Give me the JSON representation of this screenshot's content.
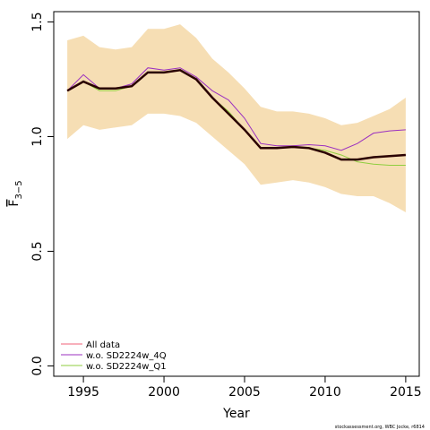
{
  "chart_data": {
    "type": "line",
    "xlabel": "Year",
    "ylabel": {
      "text": "F",
      "subscript": "3−5"
    },
    "caption": "stockassessment.org, WBC Jocke, r6814",
    "x": [
      1994,
      1995,
      1996,
      1997,
      1998,
      1999,
      2000,
      2001,
      2002,
      2003,
      2004,
      2005,
      2006,
      2007,
      2008,
      2009,
      2010,
      2011,
      2012,
      2013,
      2014,
      2015
    ],
    "xlim": [
      1993.16,
      2015.84
    ],
    "xticks": [
      1995,
      2000,
      2005,
      2010,
      2015
    ],
    "ylim": [
      -0.045,
      1.545
    ],
    "yticks": [
      {
        "value": 0,
        "label": "0.0"
      },
      {
        "value": 0.5,
        "label": "0.5"
      },
      {
        "value": 1,
        "label": "1.0"
      },
      {
        "value": 1.5,
        "label": "1.5"
      }
    ],
    "band": {
      "color": "#f6deb4",
      "upper": [
        1.42,
        1.44,
        1.39,
        1.38,
        1.39,
        1.47,
        1.47,
        1.49,
        1.43,
        1.34,
        1.28,
        1.21,
        1.13,
        1.11,
        1.11,
        1.1,
        1.08,
        1.05,
        1.06,
        1.09,
        1.12,
        1.17
      ],
      "lower": [
        0.99,
        1.05,
        1.03,
        1.04,
        1.05,
        1.1,
        1.1,
        1.09,
        1.06,
        1.0,
        0.94,
        0.88,
        0.79,
        0.8,
        0.81,
        0.8,
        0.78,
        0.75,
        0.74,
        0.74,
        0.71,
        0.67
      ]
    },
    "main_line": {
      "color": "#2a0000",
      "values": [
        1.2,
        1.24,
        1.21,
        1.21,
        1.22,
        1.28,
        1.28,
        1.29,
        1.25,
        1.17,
        1.1,
        1.03,
        0.95,
        0.95,
        0.955,
        0.95,
        0.93,
        0.9,
        0.9,
        0.91,
        0.915,
        0.92
      ]
    },
    "legend_position": "bottom-left",
    "series": [
      {
        "name": "All data",
        "color": "#f0607a",
        "values": [
          1.2,
          1.24,
          1.21,
          1.21,
          1.22,
          1.28,
          1.28,
          1.29,
          1.25,
          1.17,
          1.1,
          1.03,
          0.95,
          0.95,
          0.955,
          0.95,
          0.93,
          0.9,
          0.9,
          0.91,
          0.915,
          0.92
        ]
      },
      {
        "name": "w.o. SD2224w_4Q",
        "color": "#9b30c0",
        "values": [
          1.2,
          1.27,
          1.21,
          1.21,
          1.23,
          1.3,
          1.29,
          1.3,
          1.26,
          1.2,
          1.16,
          1.08,
          0.97,
          0.96,
          0.96,
          0.965,
          0.96,
          0.94,
          0.97,
          1.015,
          1.025,
          1.03
        ]
      },
      {
        "name": "w.o. SD2224w_Q1",
        "color": "#8fce3f",
        "values": [
          1.2,
          1.24,
          1.2,
          1.2,
          1.22,
          1.28,
          1.28,
          1.29,
          1.25,
          1.17,
          1.11,
          1.03,
          0.95,
          0.95,
          0.955,
          0.95,
          0.94,
          0.92,
          0.89,
          0.88,
          0.875,
          0.875
        ]
      }
    ]
  }
}
